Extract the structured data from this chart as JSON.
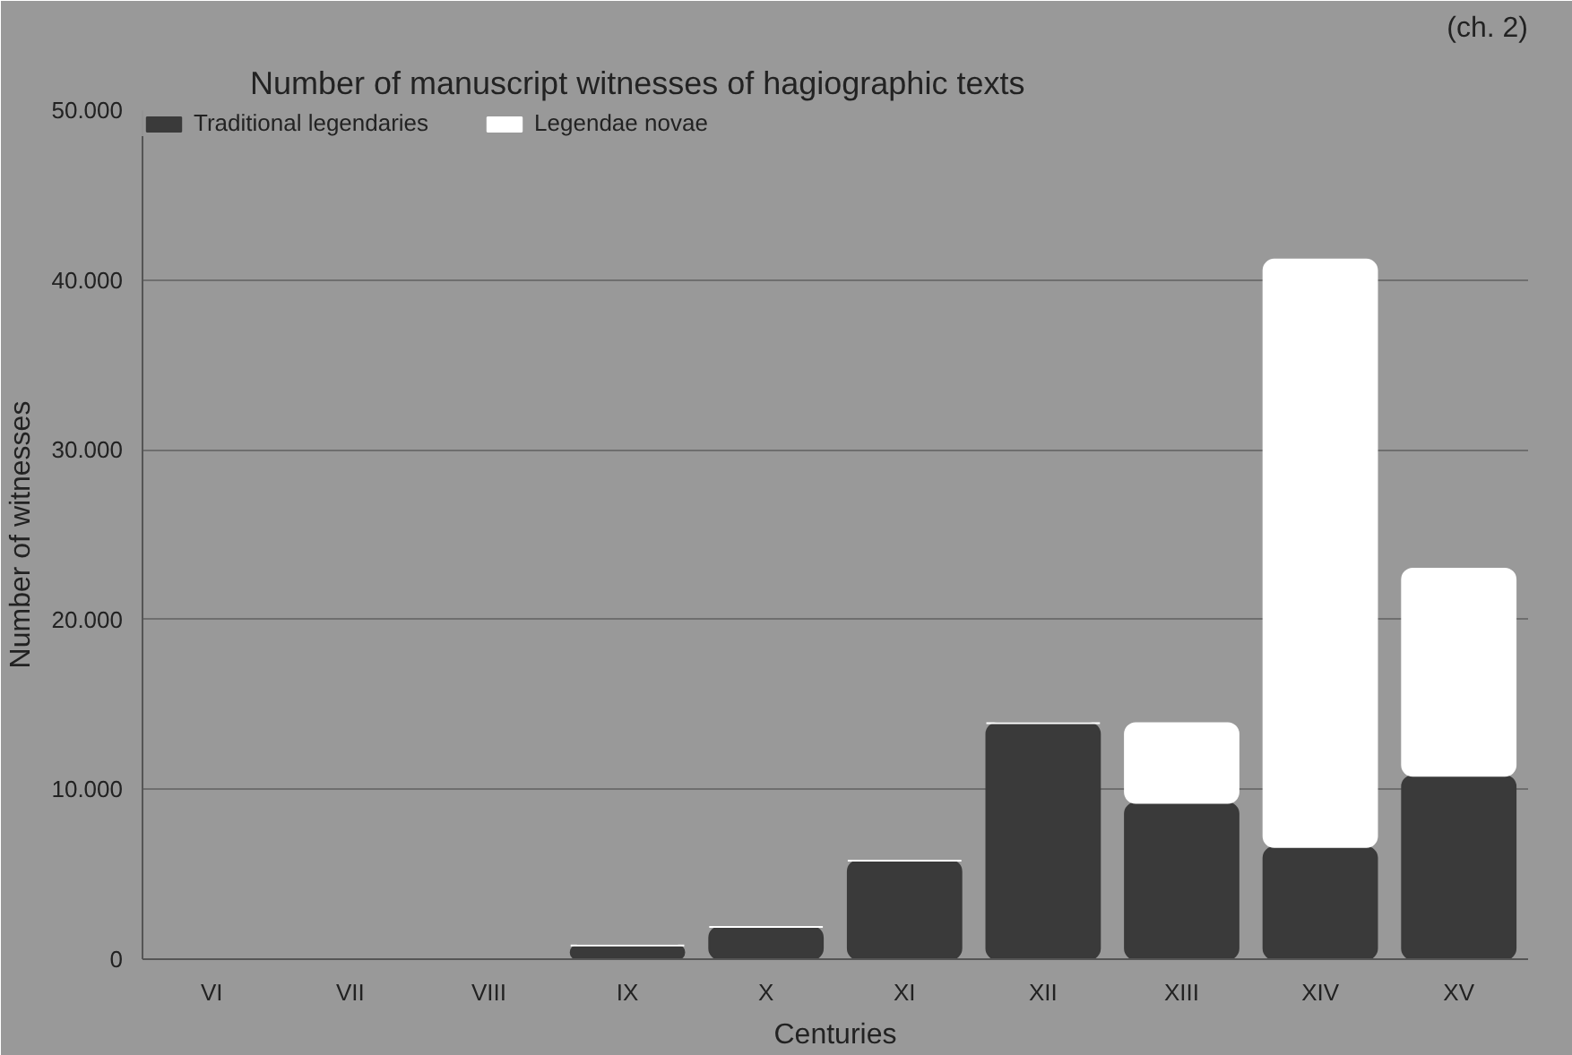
{
  "chart_data": {
    "type": "bar",
    "title": "Number of manuscript witnesses of hagiographic texts",
    "annotations": [
      "(ch. 2)"
    ],
    "xlabel": "Centuries",
    "ylabel": "Number of witnesses",
    "categories": [
      "VI",
      "VII",
      "VIII",
      "IX",
      "X",
      "XI",
      "XII",
      "XIII",
      "XIV",
      "XV"
    ],
    "stacked": true,
    "series": [
      {
        "name": "Traditional legendaries",
        "color": "#3a3a3a",
        "values": [
          0,
          0,
          0,
          800,
          1900,
          5800,
          13900,
          9200,
          6600,
          10800
        ]
      },
      {
        "name": "Legendae novae",
        "color": "#ffffff",
        "values": [
          0,
          0,
          0,
          0,
          0,
          0,
          0,
          4700,
          34600,
          12200
        ]
      }
    ],
    "ylim": [
      0,
      50000
    ],
    "yticks": [
      0,
      {
        "value": 10000,
        "label": "10.000"
      },
      {
        "value": 20000,
        "label": "20.000"
      },
      {
        "value": 30000,
        "label": "30.000"
      },
      {
        "value": 40000,
        "label": "40.000"
      },
      {
        "value": 50000,
        "label": "50.000"
      }
    ],
    "grid": "y",
    "legend": "top left"
  }
}
